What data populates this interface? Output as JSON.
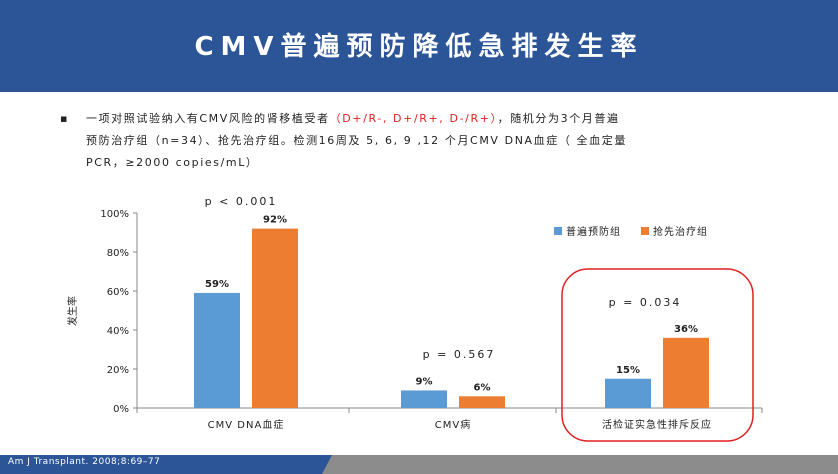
{
  "header": {
    "title": "CMV普遍预防降低急排发生率"
  },
  "bullet": {
    "line1_a": "一项对照试验纳入有CMV风险的肾移植受者",
    "line1_b": "（D+/R-, D+/R+, D-/R+）",
    "line1_c": "，随机分为3个月普遍",
    "line2": "预防治疗组（n=34）、抢先治疗组。检测16周及 5, 6, 9 ,12 个月CMV DNA血症（ 全血定量",
    "line3": "PCR，≥2000 copies/mL）"
  },
  "footer": {
    "citation": "Am J Transplant. 2008;8:69–77"
  },
  "colors": {
    "series1": "#5b9bd5",
    "series2": "#ed7d31",
    "header": "#2b5597",
    "circle": "#e02020"
  },
  "chart_data": {
    "type": "bar",
    "ylabel": "发生率",
    "ylim": [
      0,
      100
    ],
    "yticks": [
      "0%",
      "20%",
      "40%",
      "60%",
      "80%",
      "100%"
    ],
    "categories": [
      "CMV  DNA血症",
      "CMV病",
      "活检证实急性排斥反应"
    ],
    "series": [
      {
        "name": "普遍预防组",
        "values": [
          59,
          9,
          15
        ],
        "labels": [
          "59%",
          "9%",
          "15%"
        ]
      },
      {
        "name": "抢先治疗组",
        "values": [
          92,
          6,
          36
        ],
        "labels": [
          "92%",
          "6%",
          "36%"
        ]
      }
    ],
    "pvalues": [
      "p < 0.001",
      "p = 0.567",
      "p = 0.034"
    ],
    "legend_position": "top-right"
  }
}
